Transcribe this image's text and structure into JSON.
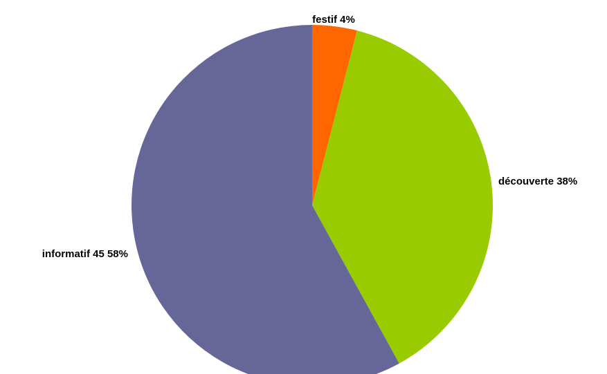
{
  "chart_data": {
    "type": "pie",
    "title": "",
    "slices": [
      {
        "label": "festif 4%",
        "value": 4,
        "color": "#FF6600"
      },
      {
        "label": "découverte 38%",
        "value": 38,
        "color": "#99CC00"
      },
      {
        "label": "informatif 45 58%",
        "value": 58,
        "color": "#666699"
      }
    ],
    "start_angle_deg": 0,
    "direction": "clockwise",
    "legend": "none"
  }
}
